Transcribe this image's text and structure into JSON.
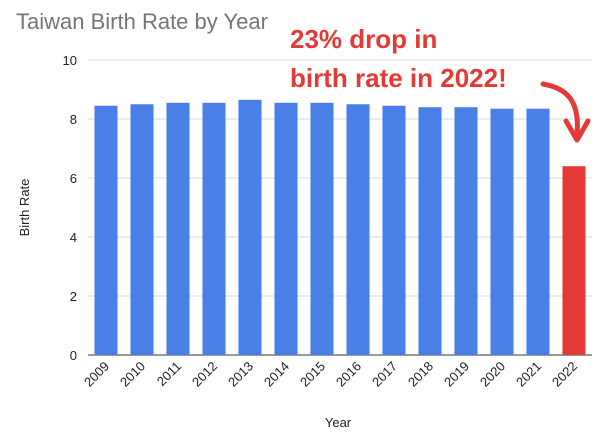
{
  "chart_data": {
    "type": "bar",
    "title": "Taiwan Birth Rate by Year",
    "xlabel": "Year",
    "ylabel": "Birth Rate",
    "ylim": [
      0,
      10
    ],
    "yticks": [
      "0",
      "2",
      "4",
      "6",
      "8",
      "10"
    ],
    "grid": true,
    "categories": [
      "2009",
      "2010",
      "2011",
      "2012",
      "2013",
      "2014",
      "2015",
      "2016",
      "2017",
      "2018",
      "2019",
      "2020",
      "2021",
      "2022"
    ],
    "values": [
      8.45,
      8.5,
      8.55,
      8.55,
      8.65,
      8.55,
      8.55,
      8.5,
      8.45,
      8.4,
      8.4,
      8.35,
      8.35,
      6.4
    ],
    "bar_color": "#4a7fe8",
    "highlight_color": "#e53935",
    "highlight_index": 13,
    "annotation": {
      "line1": "23% drop in",
      "line2": "birth rate in 2022!"
    }
  }
}
